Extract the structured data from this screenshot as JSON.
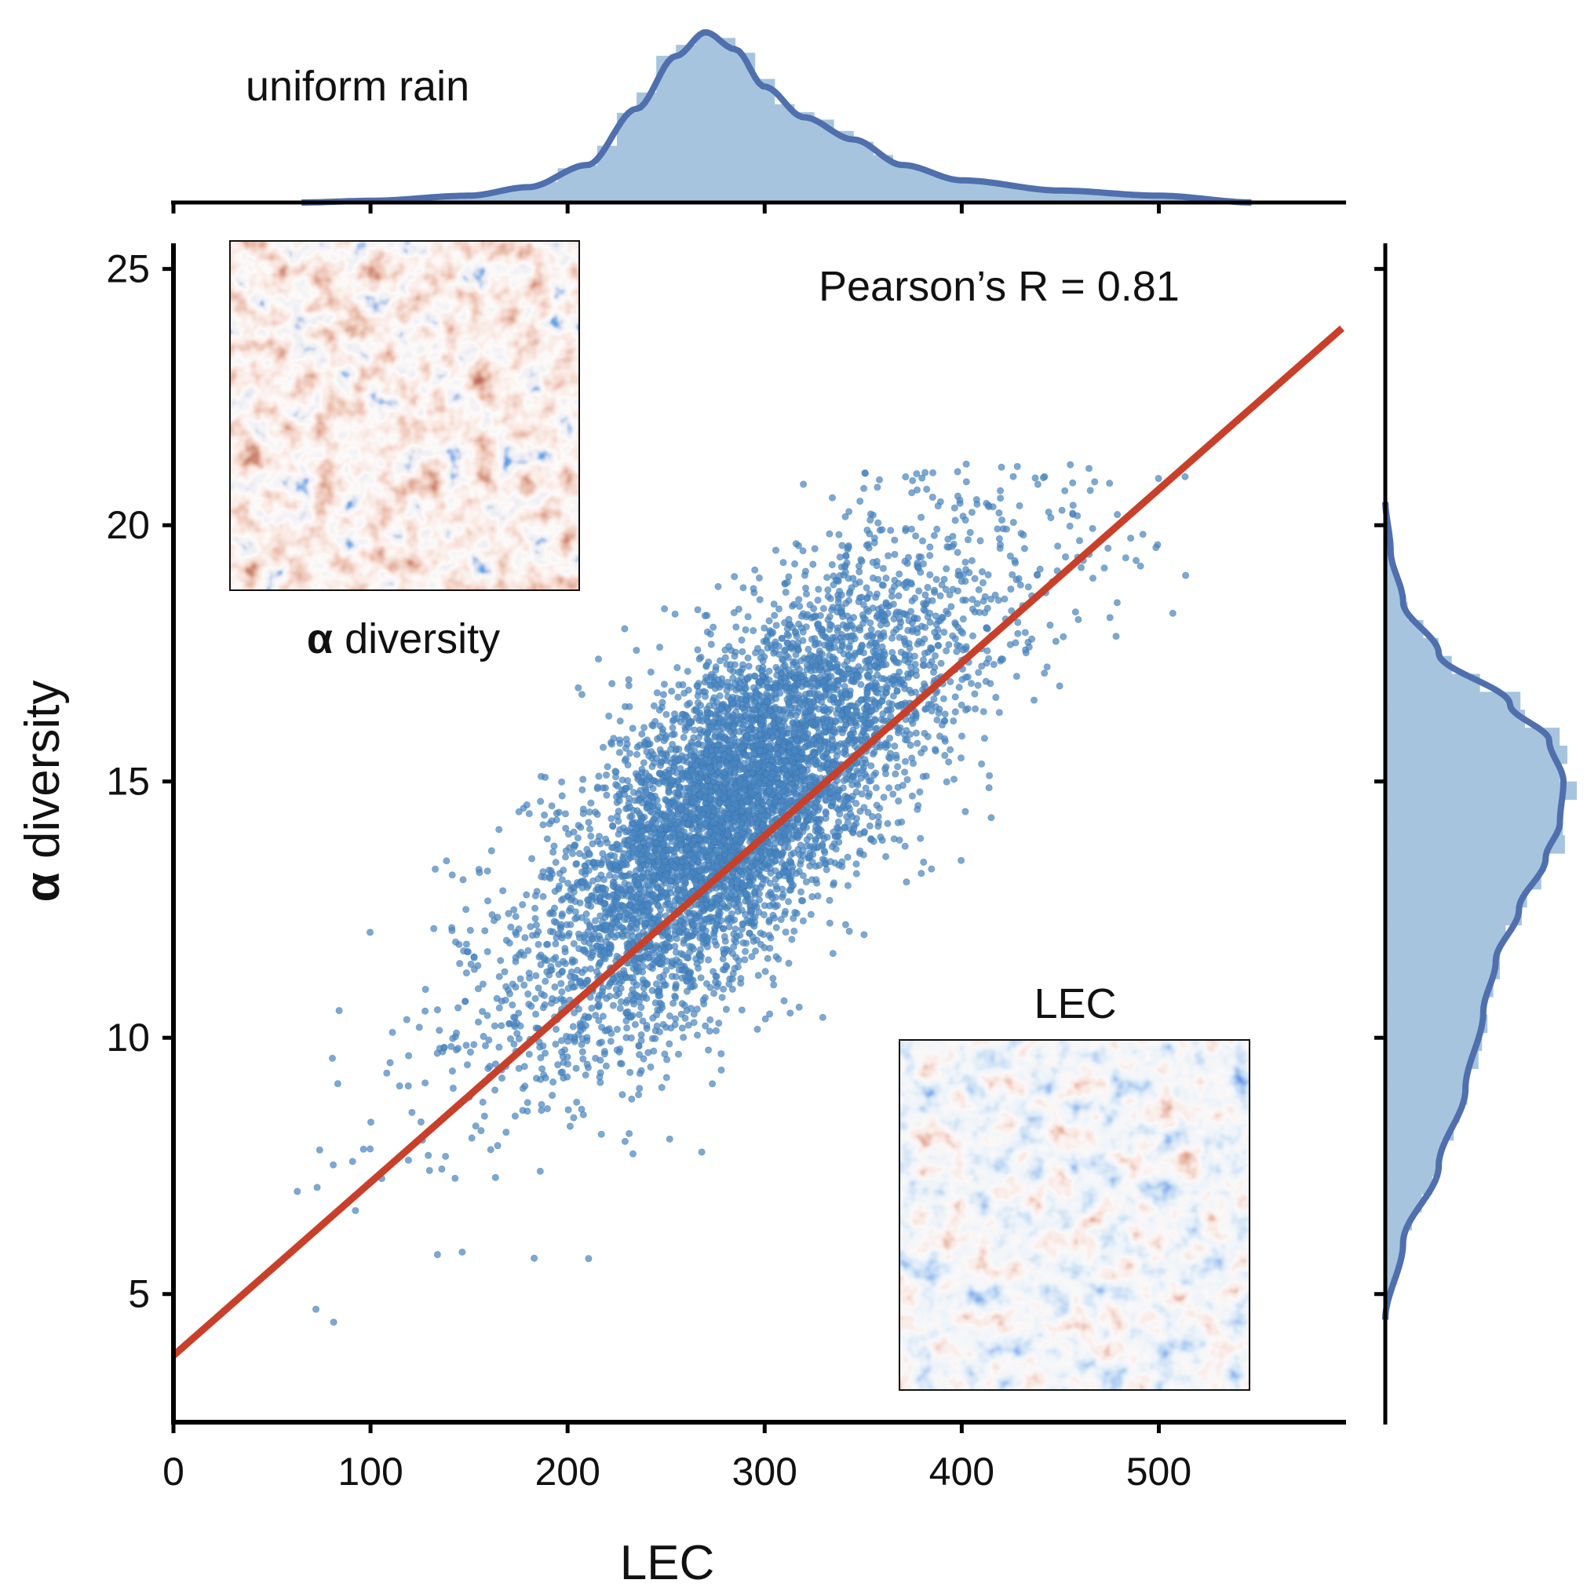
{
  "chart_data": {
    "type": "scatter",
    "title": "uniform rain",
    "xlabel": "LEC",
    "ylabel": "α diversity",
    "ylabel_symbol": "α",
    "ylabel_word": "diversity",
    "xlim": [
      0,
      595
    ],
    "ylim": [
      2.5,
      25.5
    ],
    "xticks": [
      0,
      100,
      200,
      300,
      400,
      500
    ],
    "xtick_labels": [
      "0",
      "100",
      "200",
      "300",
      "400",
      "500"
    ],
    "yticks": [
      5,
      10,
      15,
      20,
      25
    ],
    "ytick_labels": [
      "5",
      "10",
      "15",
      "20",
      "25"
    ],
    "annotation": "Pearson’s R = 0.81",
    "pearson_r": 0.81,
    "regression": {
      "intercept": 3.8,
      "slope": 0.0338
    },
    "scatter_summary": {
      "n_points_approx": 6000,
      "x_range": [
        60,
        535
      ],
      "y_range": [
        4.0,
        21.2
      ],
      "center": [
        285,
        13.8
      ]
    },
    "x_marginal_density": {
      "x": [
        65,
        100,
        150,
        180,
        210,
        235,
        255,
        270,
        285,
        300,
        320,
        345,
        370,
        400,
        450,
        500,
        548
      ],
      "density": [
        0.0,
        0.01,
        0.04,
        0.09,
        0.22,
        0.55,
        0.86,
        1.0,
        0.9,
        0.68,
        0.5,
        0.37,
        0.22,
        0.13,
        0.07,
        0.04,
        0.0
      ]
    },
    "y_marginal_density": {
      "y": [
        4.5,
        6,
        7.5,
        9,
        10.5,
        11.5,
        12.5,
        13.5,
        14.2,
        15,
        15.8,
        16.5,
        17.5,
        18.5,
        19.5,
        20.5
      ],
      "density": [
        0.0,
        0.1,
        0.3,
        0.45,
        0.55,
        0.62,
        0.75,
        0.9,
        0.98,
        1.0,
        0.92,
        0.7,
        0.3,
        0.1,
        0.03,
        0.0
      ]
    },
    "colors": {
      "scatter": "#4a86c0",
      "regression": "#c8402a",
      "marginal_fill": "#a7c4df",
      "marginal_line": "#4f6fad",
      "axis": "#000000"
    },
    "insets": [
      {
        "title": "α diversity",
        "title_symbol": "α",
        "title_word": "diversity",
        "colormap": "red-white-blue",
        "placement": "top-left"
      },
      {
        "title": "LEC",
        "colormap": "red-white-blue",
        "placement": "bottom-right"
      }
    ]
  }
}
